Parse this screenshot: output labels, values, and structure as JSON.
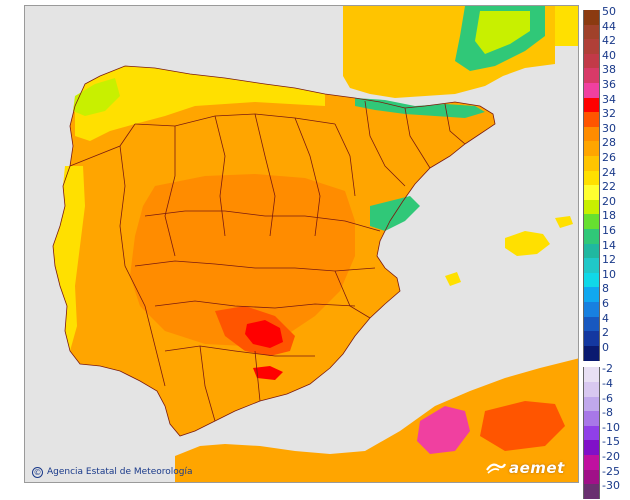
{
  "credit": {
    "text": "Agencia Estatal de Meteorología",
    "symbol": "©"
  },
  "logo": {
    "text": "aemet"
  },
  "legend": {
    "positive": [
      {
        "label": "50",
        "color": "#8b3a10"
      },
      {
        "label": "44",
        "color": "#a0412a"
      },
      {
        "label": "42",
        "color": "#b04038"
      },
      {
        "label": "40",
        "color": "#c23a48"
      },
      {
        "label": "38",
        "color": "#d83a68"
      },
      {
        "label": "36",
        "color": "#f040a0"
      },
      {
        "label": "34",
        "color": "#ff0000"
      },
      {
        "label": "32",
        "color": "#ff5500"
      },
      {
        "label": "30",
        "color": "#ff8c00"
      },
      {
        "label": "28",
        "color": "#ffa500"
      },
      {
        "label": "26",
        "color": "#ffc400"
      },
      {
        "label": "24",
        "color": "#ffe000"
      },
      {
        "label": "22",
        "color": "#ffff30"
      },
      {
        "label": "20",
        "color": "#c8f000"
      },
      {
        "label": "18",
        "color": "#66e030"
      },
      {
        "label": "16",
        "color": "#30c878"
      },
      {
        "label": "14",
        "color": "#20b8a0"
      },
      {
        "label": "12",
        "color": "#20c8c8"
      },
      {
        "label": "10",
        "color": "#10d8e8"
      },
      {
        "label": "8",
        "color": "#10a8f0"
      },
      {
        "label": "6",
        "color": "#1880e0"
      },
      {
        "label": "4",
        "color": "#1858c0"
      },
      {
        "label": "2",
        "color": "#1438a0"
      },
      {
        "label": "0",
        "color": "#0a1a70"
      }
    ],
    "negative": [
      {
        "label": "-2",
        "color": "#e8e0f4"
      },
      {
        "label": "-4",
        "color": "#d8c8f0"
      },
      {
        "label": "-6",
        "color": "#c0a8ec"
      },
      {
        "label": "-8",
        "color": "#a878e8"
      },
      {
        "label": "-10",
        "color": "#9040e8"
      },
      {
        "label": "-15",
        "color": "#8010c8"
      },
      {
        "label": "-20",
        "color": "#c010a0"
      },
      {
        "label": "-25",
        "color": "#a01088"
      },
      {
        "label": "-30",
        "color": "#6a3070"
      }
    ]
  },
  "colors": {
    "sea": "#e4e4e4",
    "land_base": "#ffa500",
    "land_warm": "#ff8c00",
    "land_hot": "#ff5500",
    "land_mild": "#ffc400",
    "land_cool": "#ffe000",
    "coast_green": "#c8f000",
    "mountain_teal": "#30c878",
    "extreme": "#ff0000",
    "magenta": "#f040a0",
    "border": "#7a1a10"
  }
}
